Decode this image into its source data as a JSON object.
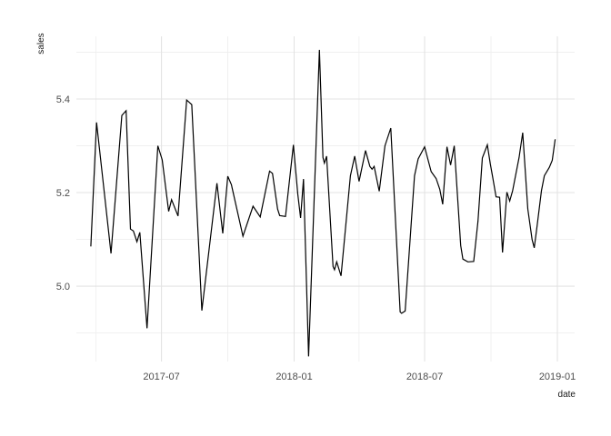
{
  "figure": {
    "background": "#ffffff"
  },
  "chart_data": {
    "type": "line",
    "title": "",
    "xlabel": "date",
    "ylabel": "sales",
    "series_name": "sales",
    "legend": "none",
    "grid_on": true,
    "line_color": "#000000",
    "line_width": 1.2,
    "colors": {
      "grid_major": "#e3e3e3",
      "grid_minor": "#efefef",
      "tick_label": "#4d4d4d",
      "axis_title": "#1a1a1a",
      "background": "#ffffff"
    },
    "x_domain": [
      "2017-03-05",
      "2019-01-25"
    ],
    "y_domain": [
      4.839,
      5.534
    ],
    "x_ticks": [
      {
        "label": "2017-07",
        "date": "2017-07-01"
      },
      {
        "label": "2018-01",
        "date": "2018-01-01"
      },
      {
        "label": "2018-07",
        "date": "2018-07-01"
      },
      {
        "label": "2019-01",
        "date": "2019-01-01"
      }
    ],
    "x_minor_ticks": [
      "2017-04-01",
      "2017-10-01",
      "2018-04-01",
      "2018-10-01"
    ],
    "y_ticks": [
      {
        "label": "5.0",
        "value": 5.0
      },
      {
        "label": "5.2",
        "value": 5.2
      },
      {
        "label": "5.4",
        "value": 5.4
      }
    ],
    "y_minor_ticks": [
      4.9,
      5.1,
      5.3,
      5.5
    ],
    "points": [
      {
        "date": "2017-03-25",
        "value": 5.085
      },
      {
        "date": "2017-04-02",
        "value": 5.35
      },
      {
        "date": "2017-04-22",
        "value": 5.07
      },
      {
        "date": "2017-05-07",
        "value": 5.365
      },
      {
        "date": "2017-05-13",
        "value": 5.375
      },
      {
        "date": "2017-05-19",
        "value": 5.122
      },
      {
        "date": "2017-05-23",
        "value": 5.118
      },
      {
        "date": "2017-05-28",
        "value": 5.095
      },
      {
        "date": "2017-06-01",
        "value": 5.115
      },
      {
        "date": "2017-06-11",
        "value": 4.91
      },
      {
        "date": "2017-06-26",
        "value": 5.3
      },
      {
        "date": "2017-07-02",
        "value": 5.27
      },
      {
        "date": "2017-07-11",
        "value": 5.16
      },
      {
        "date": "2017-07-15",
        "value": 5.185
      },
      {
        "date": "2017-07-24",
        "value": 5.15
      },
      {
        "date": "2017-08-05",
        "value": 5.398
      },
      {
        "date": "2017-08-12",
        "value": 5.388
      },
      {
        "date": "2017-08-26",
        "value": 4.948
      },
      {
        "date": "2017-09-16",
        "value": 5.22
      },
      {
        "date": "2017-09-24",
        "value": 5.113
      },
      {
        "date": "2017-10-01",
        "value": 5.235
      },
      {
        "date": "2017-10-06",
        "value": 5.217
      },
      {
        "date": "2017-10-22",
        "value": 5.107
      },
      {
        "date": "2017-11-05",
        "value": 5.171
      },
      {
        "date": "2017-11-15",
        "value": 5.148
      },
      {
        "date": "2017-11-28",
        "value": 5.246
      },
      {
        "date": "2017-12-02",
        "value": 5.241
      },
      {
        "date": "2017-12-09",
        "value": 5.165
      },
      {
        "date": "2017-12-12",
        "value": 5.151
      },
      {
        "date": "2017-12-20",
        "value": 5.149
      },
      {
        "date": "2017-12-31",
        "value": 5.302
      },
      {
        "date": "2018-01-06",
        "value": 5.197
      },
      {
        "date": "2018-01-10",
        "value": 5.146
      },
      {
        "date": "2018-01-14",
        "value": 5.229
      },
      {
        "date": "2018-01-21",
        "value": 4.85
      },
      {
        "date": "2018-02-05",
        "value": 5.505
      },
      {
        "date": "2018-02-10",
        "value": 5.275
      },
      {
        "date": "2018-02-12",
        "value": 5.263
      },
      {
        "date": "2018-02-15",
        "value": 5.278
      },
      {
        "date": "2018-02-24",
        "value": 5.042
      },
      {
        "date": "2018-02-26",
        "value": 5.035
      },
      {
        "date": "2018-03-01",
        "value": 5.052
      },
      {
        "date": "2018-03-07",
        "value": 5.022
      },
      {
        "date": "2018-03-20",
        "value": 5.236
      },
      {
        "date": "2018-03-26",
        "value": 5.278
      },
      {
        "date": "2018-04-01",
        "value": 5.224
      },
      {
        "date": "2018-04-10",
        "value": 5.29
      },
      {
        "date": "2018-04-16",
        "value": 5.256
      },
      {
        "date": "2018-04-19",
        "value": 5.25
      },
      {
        "date": "2018-04-22",
        "value": 5.256
      },
      {
        "date": "2018-04-29",
        "value": 5.203
      },
      {
        "date": "2018-05-07",
        "value": 5.3
      },
      {
        "date": "2018-05-15",
        "value": 5.338
      },
      {
        "date": "2018-05-28",
        "value": 4.945
      },
      {
        "date": "2018-05-30",
        "value": 4.942
      },
      {
        "date": "2018-06-04",
        "value": 4.947
      },
      {
        "date": "2018-06-17",
        "value": 5.236
      },
      {
        "date": "2018-06-22",
        "value": 5.272
      },
      {
        "date": "2018-07-01",
        "value": 5.298
      },
      {
        "date": "2018-07-10",
        "value": 5.245
      },
      {
        "date": "2018-07-17",
        "value": 5.23
      },
      {
        "date": "2018-07-22",
        "value": 5.207
      },
      {
        "date": "2018-07-26",
        "value": 5.175
      },
      {
        "date": "2018-08-01",
        "value": 5.298
      },
      {
        "date": "2018-08-06",
        "value": 5.259
      },
      {
        "date": "2018-08-11",
        "value": 5.3
      },
      {
        "date": "2018-08-20",
        "value": 5.087
      },
      {
        "date": "2018-08-23",
        "value": 5.058
      },
      {
        "date": "2018-08-30",
        "value": 5.052
      },
      {
        "date": "2018-09-07",
        "value": 5.053
      },
      {
        "date": "2018-09-13",
        "value": 5.139
      },
      {
        "date": "2018-09-19",
        "value": 5.274
      },
      {
        "date": "2018-09-26",
        "value": 5.302
      },
      {
        "date": "2018-09-30",
        "value": 5.262
      },
      {
        "date": "2018-10-03",
        "value": 5.236
      },
      {
        "date": "2018-10-08",
        "value": 5.191
      },
      {
        "date": "2018-10-13",
        "value": 5.19
      },
      {
        "date": "2018-10-17",
        "value": 5.072
      },
      {
        "date": "2018-10-23",
        "value": 5.201
      },
      {
        "date": "2018-10-27",
        "value": 5.182
      },
      {
        "date": "2018-10-31",
        "value": 5.204
      },
      {
        "date": "2018-11-09",
        "value": 5.275
      },
      {
        "date": "2018-11-14",
        "value": 5.328
      },
      {
        "date": "2018-11-21",
        "value": 5.165
      },
      {
        "date": "2018-11-27",
        "value": 5.1
      },
      {
        "date": "2018-11-30",
        "value": 5.082
      },
      {
        "date": "2018-12-04",
        "value": 5.13
      },
      {
        "date": "2018-12-10",
        "value": 5.204
      },
      {
        "date": "2018-12-14",
        "value": 5.236
      },
      {
        "date": "2018-12-21",
        "value": 5.254
      },
      {
        "date": "2018-12-25",
        "value": 5.269
      },
      {
        "date": "2018-12-29",
        "value": 5.314
      }
    ]
  }
}
